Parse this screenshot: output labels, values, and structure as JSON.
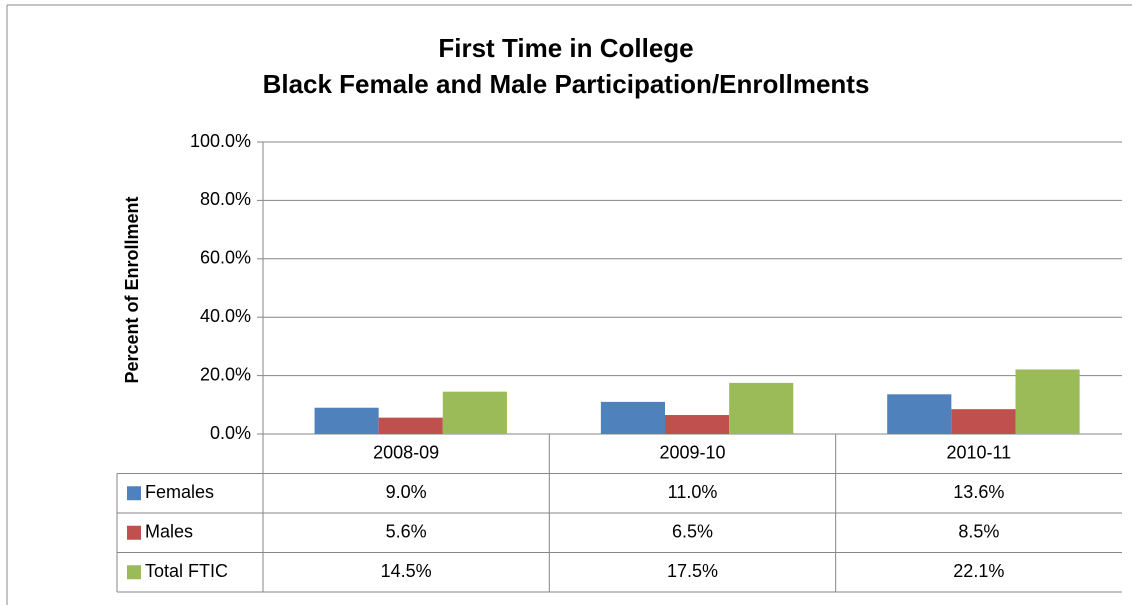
{
  "chart_data": {
    "type": "bar",
    "title": "First Time in College",
    "subtitle": "Black Female and Male Participation/Enrollments",
    "y_label": "Percent of Enrollment",
    "categories": [
      "2008-09",
      "2009-10",
      "2010-11"
    ],
    "series": [
      {
        "name": "Females",
        "color": "#4f81bd",
        "values": [
          9.0,
          11.0,
          13.6
        ],
        "value_labels": [
          "9.0%",
          "11.0%",
          "13.6%"
        ]
      },
      {
        "name": "Males",
        "color": "#c0504d",
        "values": [
          5.6,
          6.5,
          8.5
        ],
        "value_labels": [
          "5.6%",
          "6.5%",
          "8.5%"
        ]
      },
      {
        "name": "Total FTIC",
        "color": "#9bbb59",
        "values": [
          14.5,
          17.5,
          22.1
        ],
        "value_labels": [
          "14.5%",
          "17.5%",
          "22.1%"
        ]
      }
    ],
    "ylim": [
      0,
      100
    ],
    "yticks": [
      {
        "value": 0,
        "label": "0.0%"
      },
      {
        "value": 20,
        "label": "20.0%"
      },
      {
        "value": 40,
        "label": "40.0%"
      },
      {
        "value": 60,
        "label": "60.0%"
      },
      {
        "value": 80,
        "label": "80.0%"
      },
      {
        "value": 100,
        "label": "100.0%"
      }
    ],
    "grid": true
  }
}
